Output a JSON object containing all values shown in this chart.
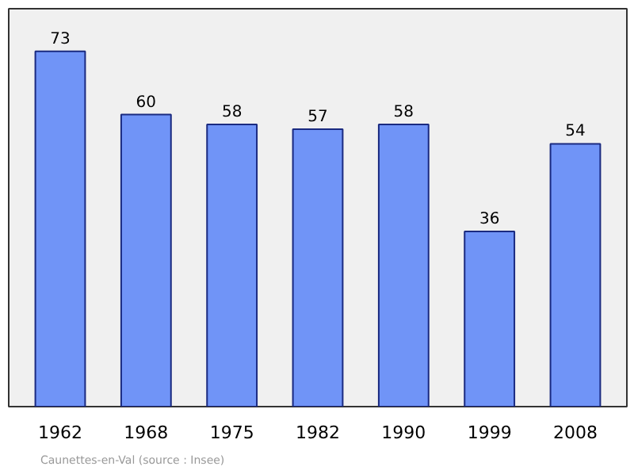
{
  "chart_data": {
    "type": "bar",
    "categories": [
      "1962",
      "1968",
      "1975",
      "1982",
      "1990",
      "1999",
      "2008"
    ],
    "values": [
      73,
      60,
      58,
      57,
      58,
      36,
      54
    ],
    "color": "#7094f7",
    "data_labels": true,
    "grid": false,
    "annotations": [
      "Caunettes-en-Val    (source : Insee)"
    ]
  }
}
